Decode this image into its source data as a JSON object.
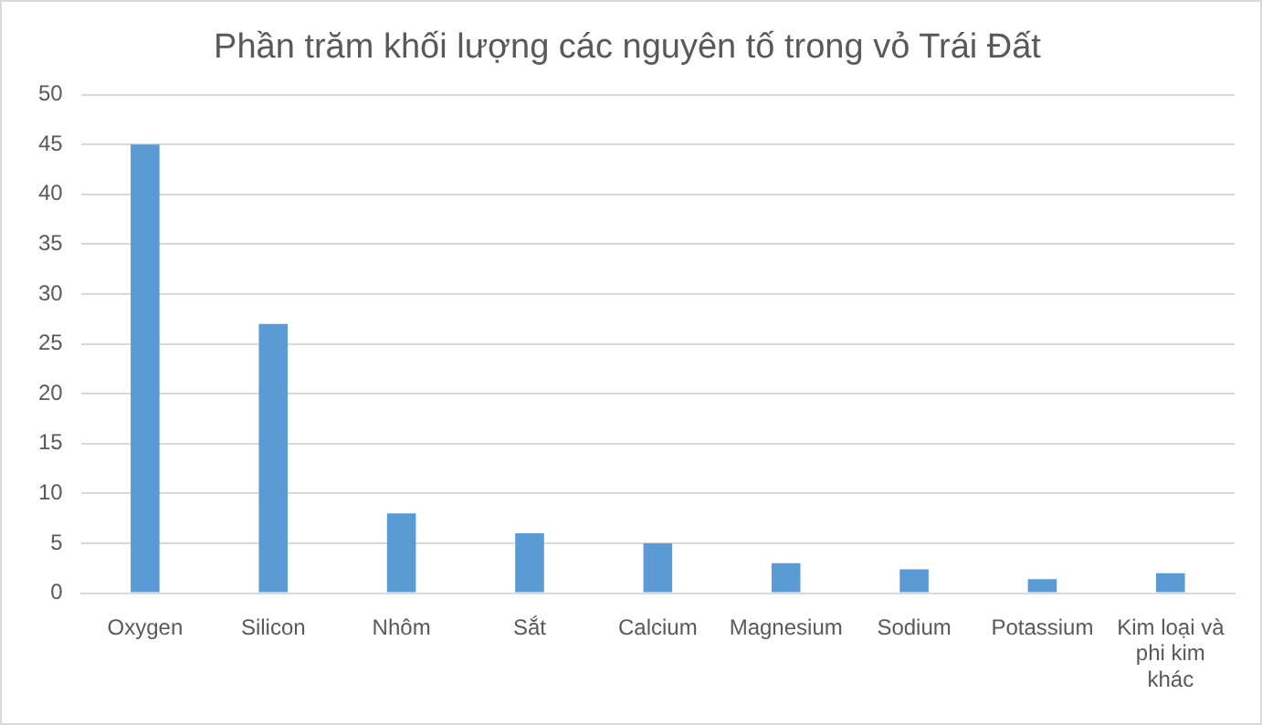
{
  "chart_data": {
    "type": "bar",
    "title": "Phần trăm khối lượng các nguyên tố trong vỏ Trái Đất",
    "categories": [
      "Oxygen",
      "Silicon",
      "Nhôm",
      "Sắt",
      "Calcium",
      "Magnesium",
      "Sodium",
      "Potassium",
      "Kim loại và phi kim khác"
    ],
    "values": [
      45,
      27,
      8,
      6,
      5,
      3,
      2.4,
      1.4,
      2
    ],
    "color": "#5b9bd5",
    "ylim": [
      0,
      50
    ],
    "yticks": [
      0,
      5,
      10,
      15,
      20,
      25,
      30,
      35,
      40,
      45,
      50
    ],
    "grid": "y",
    "legend": false
  }
}
